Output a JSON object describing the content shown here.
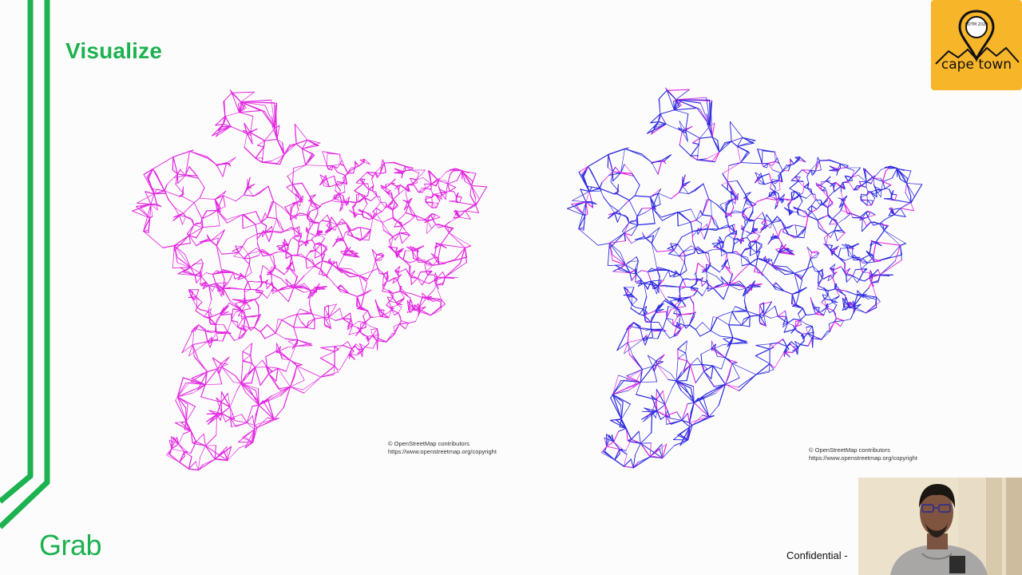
{
  "slide": {
    "title": "Visualize",
    "footer_label": "Confidential -",
    "logo_text": "Grab"
  },
  "badge": {
    "small_text": "SOTM 2020",
    "city_text": "cape town"
  },
  "maps": [
    {
      "attribution_line1": "© OpenStreetMap contributors",
      "attribution_line2": "https://www.openstreetmap.org/copyright",
      "primary_color": "#e226e0"
    },
    {
      "attribution_line1": "© OpenStreetMap contributors",
      "attribution_line2": "https://www.openstreetmap.org/copyright",
      "primary_color": "#2c2ce0",
      "secondary_color": "#e226e0"
    }
  ],
  "colors": {
    "brand_green": "#1db250",
    "badge_yellow": "#f7b52a"
  },
  "icons": {
    "badge_pin": "location-pin-icon"
  }
}
